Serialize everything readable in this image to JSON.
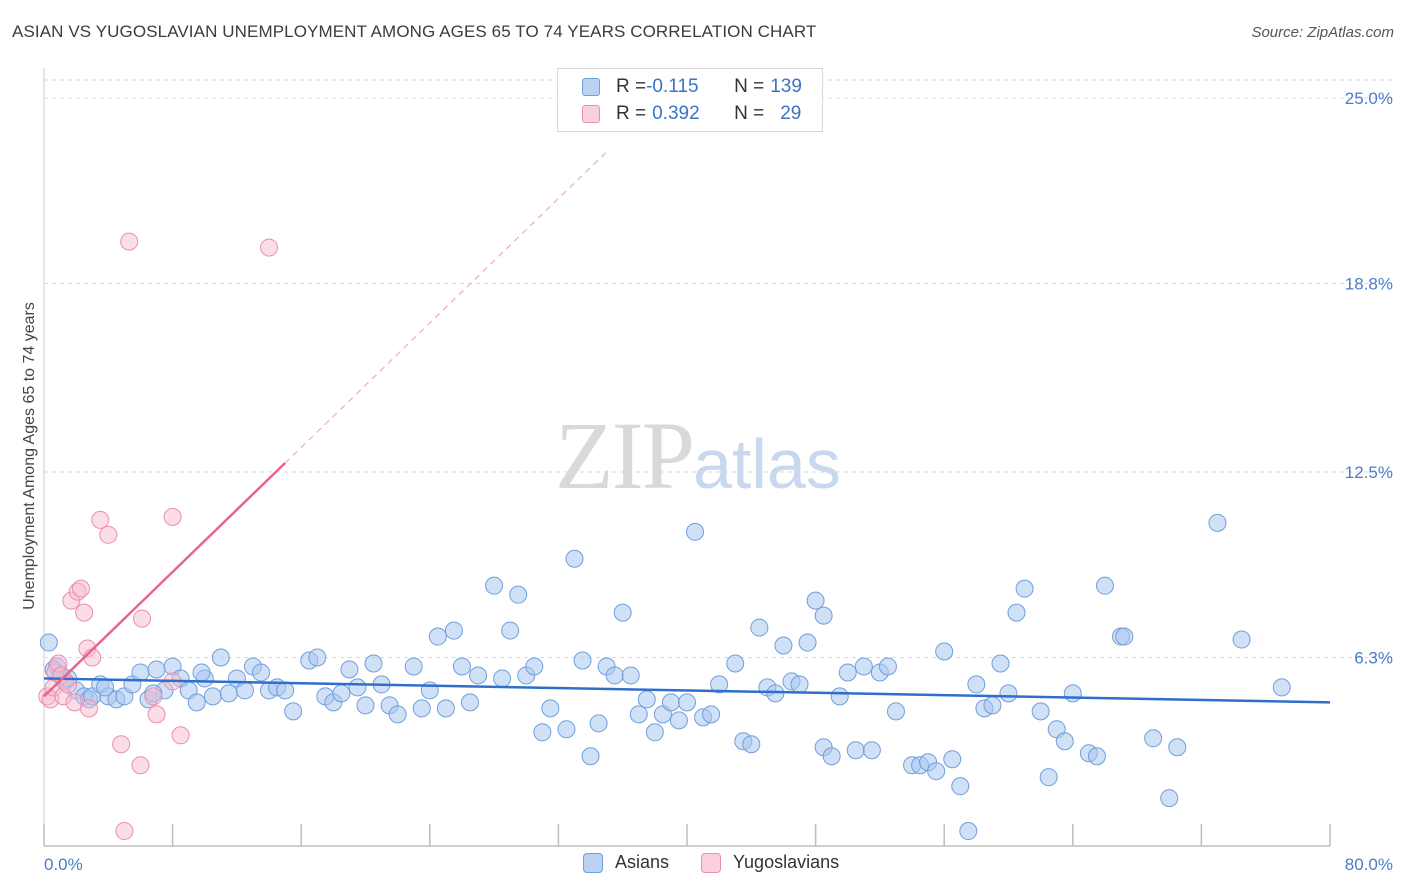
{
  "title": "ASIAN VS YUGOSLAVIAN UNEMPLOYMENT AMONG AGES 65 TO 74 YEARS CORRELATION CHART",
  "source": "Source: ZipAtlas.com",
  "watermark": {
    "zip": "ZIP",
    "atlas": "atlas"
  },
  "legend": {
    "asians": {
      "r_label": "R = ",
      "r_value": "-0.115",
      "n_label": "N = ",
      "n_value": "139"
    },
    "yugoslavians": {
      "r_label": "R = ",
      "r_value": "0.392",
      "n_label": "N = ",
      "n_value": "29"
    }
  },
  "colors": {
    "asians_fill": "#a9c7ee",
    "asians_stroke": "#6f9fdc",
    "asians_line": "#2f6fcc",
    "yugo_fill": "#f7bcd0",
    "yugo_stroke": "#ea8fae",
    "yugo_line": "#e8648e",
    "grid": "#d9d9d9",
    "tick_text": "#4a7cc9"
  },
  "chart_data": {
    "type": "scatter",
    "title": "ASIAN VS YUGOSLAVIAN UNEMPLOYMENT AMONG AGES 65 TO 74 YEARS CORRELATION CHART",
    "xlabel": "",
    "ylabel": "Unemployment Among Ages 65 to 74 years",
    "xlim": [
      0,
      80
    ],
    "ylim": [
      0,
      25.6
    ],
    "x_ticks": [
      "0.0%",
      "80.0%"
    ],
    "y_ticks": [
      {
        "value": 6.3,
        "label": "6.3%"
      },
      {
        "value": 12.5,
        "label": "12.5%"
      },
      {
        "value": 18.8,
        "label": "18.8%"
      },
      {
        "value": 25.0,
        "label": "25.0%"
      }
    ],
    "grid": true,
    "legend_position": "bottom-center",
    "series": [
      {
        "name": "Asians",
        "trend": {
          "x0": 0,
          "y0": 5.6,
          "x1": 80,
          "y1": 4.8
        },
        "points": [
          [
            0.3,
            6.8
          ],
          [
            0.8,
            6.0
          ],
          [
            1.0,
            5.7
          ],
          [
            1.3,
            5.5
          ],
          [
            2.0,
            5.2
          ],
          [
            2.5,
            5.0
          ],
          [
            2.8,
            4.9
          ],
          [
            3.0,
            5.0
          ],
          [
            3.5,
            5.4
          ],
          [
            4.0,
            5.0
          ],
          [
            4.5,
            4.9
          ],
          [
            5.0,
            5.0
          ],
          [
            5.5,
            5.4
          ],
          [
            6.0,
            5.8
          ],
          [
            6.5,
            4.9
          ],
          [
            7.0,
            5.9
          ],
          [
            7.5,
            5.2
          ],
          [
            8.0,
            6.0
          ],
          [
            8.5,
            5.6
          ],
          [
            9.0,
            5.2
          ],
          [
            9.5,
            4.8
          ],
          [
            10.0,
            5.6
          ],
          [
            10.5,
            5.0
          ],
          [
            11.0,
            6.3
          ],
          [
            11.5,
            5.1
          ],
          [
            12.0,
            5.6
          ],
          [
            12.5,
            5.2
          ],
          [
            13.0,
            6.0
          ],
          [
            13.5,
            5.8
          ],
          [
            14.0,
            5.2
          ],
          [
            14.5,
            5.3
          ],
          [
            15.0,
            5.2
          ],
          [
            15.5,
            4.5
          ],
          [
            16.5,
            6.2
          ],
          [
            17.0,
            6.3
          ],
          [
            17.5,
            5.0
          ],
          [
            18.0,
            4.8
          ],
          [
            18.5,
            5.1
          ],
          [
            19.0,
            5.9
          ],
          [
            19.5,
            5.3
          ],
          [
            20.0,
            4.7
          ],
          [
            20.5,
            6.1
          ],
          [
            21.0,
            5.4
          ],
          [
            21.5,
            4.7
          ],
          [
            22.0,
            4.4
          ],
          [
            23.0,
            6.0
          ],
          [
            23.5,
            4.6
          ],
          [
            24.0,
            5.2
          ],
          [
            24.5,
            7.0
          ],
          [
            25.0,
            4.6
          ],
          [
            25.5,
            7.2
          ],
          [
            26.0,
            6.0
          ],
          [
            26.5,
            4.8
          ],
          [
            27.0,
            5.7
          ],
          [
            28.0,
            8.7
          ],
          [
            28.5,
            5.6
          ],
          [
            29.0,
            7.2
          ],
          [
            29.5,
            8.4
          ],
          [
            30.0,
            5.7
          ],
          [
            30.5,
            6.0
          ],
          [
            31.0,
            3.8
          ],
          [
            31.5,
            4.6
          ],
          [
            32.5,
            3.9
          ],
          [
            33.0,
            9.6
          ],
          [
            33.5,
            6.2
          ],
          [
            34.0,
            3.0
          ],
          [
            34.5,
            4.1
          ],
          [
            35.0,
            6.0
          ],
          [
            35.5,
            5.7
          ],
          [
            36.5,
            5.7
          ],
          [
            36.0,
            7.8
          ],
          [
            37.0,
            4.4
          ],
          [
            37.5,
            4.9
          ],
          [
            38.0,
            3.8
          ],
          [
            38.5,
            4.4
          ],
          [
            39.0,
            4.8
          ],
          [
            39.5,
            4.2
          ],
          [
            40.0,
            4.8
          ],
          [
            40.5,
            10.5
          ],
          [
            41.0,
            4.3
          ],
          [
            41.5,
            4.4
          ],
          [
            42.0,
            5.4
          ],
          [
            43.0,
            6.1
          ],
          [
            43.5,
            3.5
          ],
          [
            44.0,
            3.4
          ],
          [
            44.5,
            7.3
          ],
          [
            45.0,
            5.3
          ],
          [
            45.5,
            5.1
          ],
          [
            46.0,
            6.7
          ],
          [
            46.5,
            5.5
          ],
          [
            47.0,
            5.4
          ],
          [
            47.5,
            6.8
          ],
          [
            48.0,
            8.2
          ],
          [
            48.5,
            7.7
          ],
          [
            48.5,
            3.3
          ],
          [
            49.0,
            3.0
          ],
          [
            49.5,
            5.0
          ],
          [
            50.0,
            5.8
          ],
          [
            50.5,
            3.2
          ],
          [
            51.0,
            6.0
          ],
          [
            51.5,
            3.2
          ],
          [
            52.0,
            5.8
          ],
          [
            52.5,
            6.0
          ],
          [
            53.0,
            4.5
          ],
          [
            54.0,
            2.7
          ],
          [
            54.5,
            2.7
          ],
          [
            55.0,
            2.8
          ],
          [
            55.5,
            2.5
          ],
          [
            56.0,
            6.5
          ],
          [
            56.5,
            2.9
          ],
          [
            57.0,
            2.0
          ],
          [
            57.5,
            0.5
          ],
          [
            58.0,
            5.4
          ],
          [
            58.5,
            4.6
          ],
          [
            59.0,
            4.7
          ],
          [
            59.5,
            6.1
          ],
          [
            60.0,
            5.1
          ],
          [
            60.5,
            7.8
          ],
          [
            61.0,
            8.6
          ],
          [
            62.0,
            4.5
          ],
          [
            62.5,
            2.3
          ],
          [
            63.0,
            3.9
          ],
          [
            63.5,
            3.5
          ],
          [
            64.0,
            5.1
          ],
          [
            65.0,
            3.1
          ],
          [
            65.5,
            3.0
          ],
          [
            66.0,
            8.7
          ],
          [
            67.0,
            7.0
          ],
          [
            67.2,
            7.0
          ],
          [
            69.0,
            3.6
          ],
          [
            70.0,
            1.6
          ],
          [
            70.5,
            3.3
          ],
          [
            73.0,
            10.8
          ],
          [
            74.5,
            6.9
          ],
          [
            77.0,
            5.3
          ],
          [
            0.6,
            5.9
          ],
          [
            1.5,
            5.6
          ],
          [
            3.8,
            5.3
          ],
          [
            6.8,
            5.1
          ],
          [
            9.8,
            5.8
          ]
        ]
      },
      {
        "name": "Yugoslavians",
        "trend": {
          "x0": 0,
          "y0": 5.0,
          "x1": 15,
          "y1": 12.8
        },
        "trend_extension": {
          "x0": 15,
          "y0": 12.8,
          "x1": 35,
          "y1": 23.2
        },
        "points": [
          [
            0.2,
            5.0
          ],
          [
            0.4,
            4.9
          ],
          [
            0.6,
            5.3
          ],
          [
            0.7,
            5.8
          ],
          [
            0.9,
            6.1
          ],
          [
            1.1,
            5.7
          ],
          [
            1.2,
            5.0
          ],
          [
            1.5,
            5.4
          ],
          [
            1.7,
            8.2
          ],
          [
            1.9,
            4.8
          ],
          [
            2.1,
            8.5
          ],
          [
            2.3,
            8.6
          ],
          [
            2.5,
            7.8
          ],
          [
            2.7,
            6.6
          ],
          [
            2.8,
            4.6
          ],
          [
            3.0,
            6.3
          ],
          [
            3.5,
            10.9
          ],
          [
            4.0,
            10.4
          ],
          [
            4.8,
            3.4
          ],
          [
            5.0,
            0.5
          ],
          [
            5.3,
            20.2
          ],
          [
            6.0,
            2.7
          ],
          [
            6.1,
            7.6
          ],
          [
            6.8,
            5.0
          ],
          [
            7.0,
            4.4
          ],
          [
            8.0,
            11.0
          ],
          [
            8.5,
            3.7
          ],
          [
            8.0,
            5.5
          ],
          [
            14.0,
            20.0
          ]
        ]
      }
    ]
  }
}
